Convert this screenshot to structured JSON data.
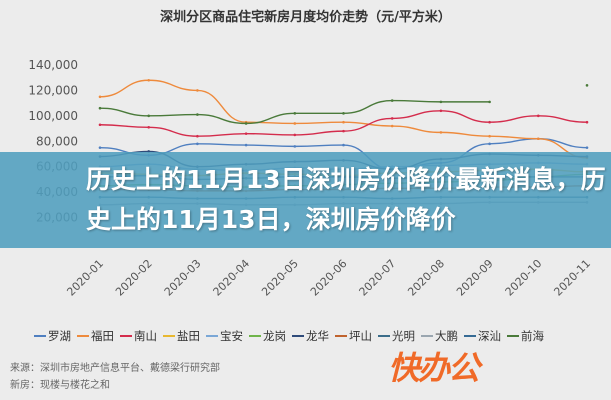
{
  "chart_data": {
    "type": "line",
    "title": "深圳分区商品住宅新房月度均价走势（元/平方米）",
    "categories": [
      "2020-01",
      "2020-02",
      "2020-03",
      "2020-04",
      "2020-05",
      "2020-06",
      "2020-07",
      "2020-08",
      "2020-09",
      "2020-10",
      "2020-11"
    ],
    "yticks": [
      "20,000",
      "40,000",
      "60,000",
      "80,000",
      "100,000",
      "120,000",
      "140,000"
    ],
    "ylim": [
      0,
      140000
    ],
    "grid": false,
    "legend_position": "bottom",
    "series": [
      {
        "name": "罗湖",
        "color": "#4f7fc0",
        "values": [
          75000,
          69000,
          78000,
          77000,
          76000,
          77000,
          58000,
          63000,
          78000,
          82000,
          75000
        ]
      },
      {
        "name": "福田",
        "color": "#ee8a3c",
        "values": [
          115000,
          128000,
          120000,
          95000,
          94000,
          95000,
          92000,
          87000,
          84000,
          82000,
          67000
        ]
      },
      {
        "name": "南山",
        "color": "#d42c4c",
        "values": [
          93000,
          91000,
          84000,
          86000,
          85000,
          88000,
          98000,
          104000,
          95000,
          100000,
          95000
        ]
      },
      {
        "name": "盐田",
        "color": "#e8b830",
        "values": [
          55000,
          54000,
          53000,
          55000,
          54000,
          53000,
          55000,
          56000,
          57000,
          58000,
          56000
        ]
      },
      {
        "name": "宝安",
        "color": "#7aa7d6",
        "values": [
          60000,
          62000,
          58000,
          57000,
          59000,
          58000,
          60000,
          61000,
          62000,
          63000,
          62000
        ]
      },
      {
        "name": "龙岗",
        "color": "#6fb44a",
        "values": [
          45000,
          46000,
          45000,
          44000,
          45000,
          46000,
          47000,
          48000,
          49000,
          52000,
          54000
        ]
      },
      {
        "name": "龙华",
        "color": "#2f4b7a",
        "values": [
          68000,
          72000,
          60000,
          62000,
          64000,
          65000,
          58000,
          66000,
          70000,
          69000,
          68000
        ]
      },
      {
        "name": "坪山",
        "color": "#c0632e",
        "values": [
          42000,
          42000,
          41000,
          41000,
          42000,
          42000,
          43000,
          43000,
          44000,
          44000,
          45000
        ]
      },
      {
        "name": "光明",
        "color": "#3b6d8a",
        "values": [
          52000,
          53000,
          50000,
          51000,
          52000,
          52000,
          51000,
          52000,
          53000,
          52000,
          52000
        ]
      },
      {
        "name": "大鹏",
        "color": "#9aa6b0",
        "values": [
          30000,
          31000,
          31000,
          30000,
          30000,
          31000,
          31000,
          31000,
          32000,
          32000,
          32000
        ]
      },
      {
        "name": "深汕",
        "color": "#356a94",
        "values": [
          36000,
          36000,
          35000,
          35000,
          36000,
          36000,
          35000,
          36000,
          36000,
          36000,
          36000
        ]
      },
      {
        "name": "前海",
        "color": "#4a7a3a",
        "values": [
          106000,
          100000,
          101000,
          94000,
          102000,
          102000,
          112000,
          111000,
          111000,
          null,
          124000
        ]
      }
    ]
  },
  "banner": {
    "text": "历史上的11月13日深圳房价降价最新消息，历史上的11月13日，深圳房价降价"
  },
  "source": {
    "line1": "来源：深圳市房地产信息平台、戴德梁行研究部",
    "line2": "新房：现楼与楼花之和"
  },
  "logo": {
    "text": "快办公"
  }
}
